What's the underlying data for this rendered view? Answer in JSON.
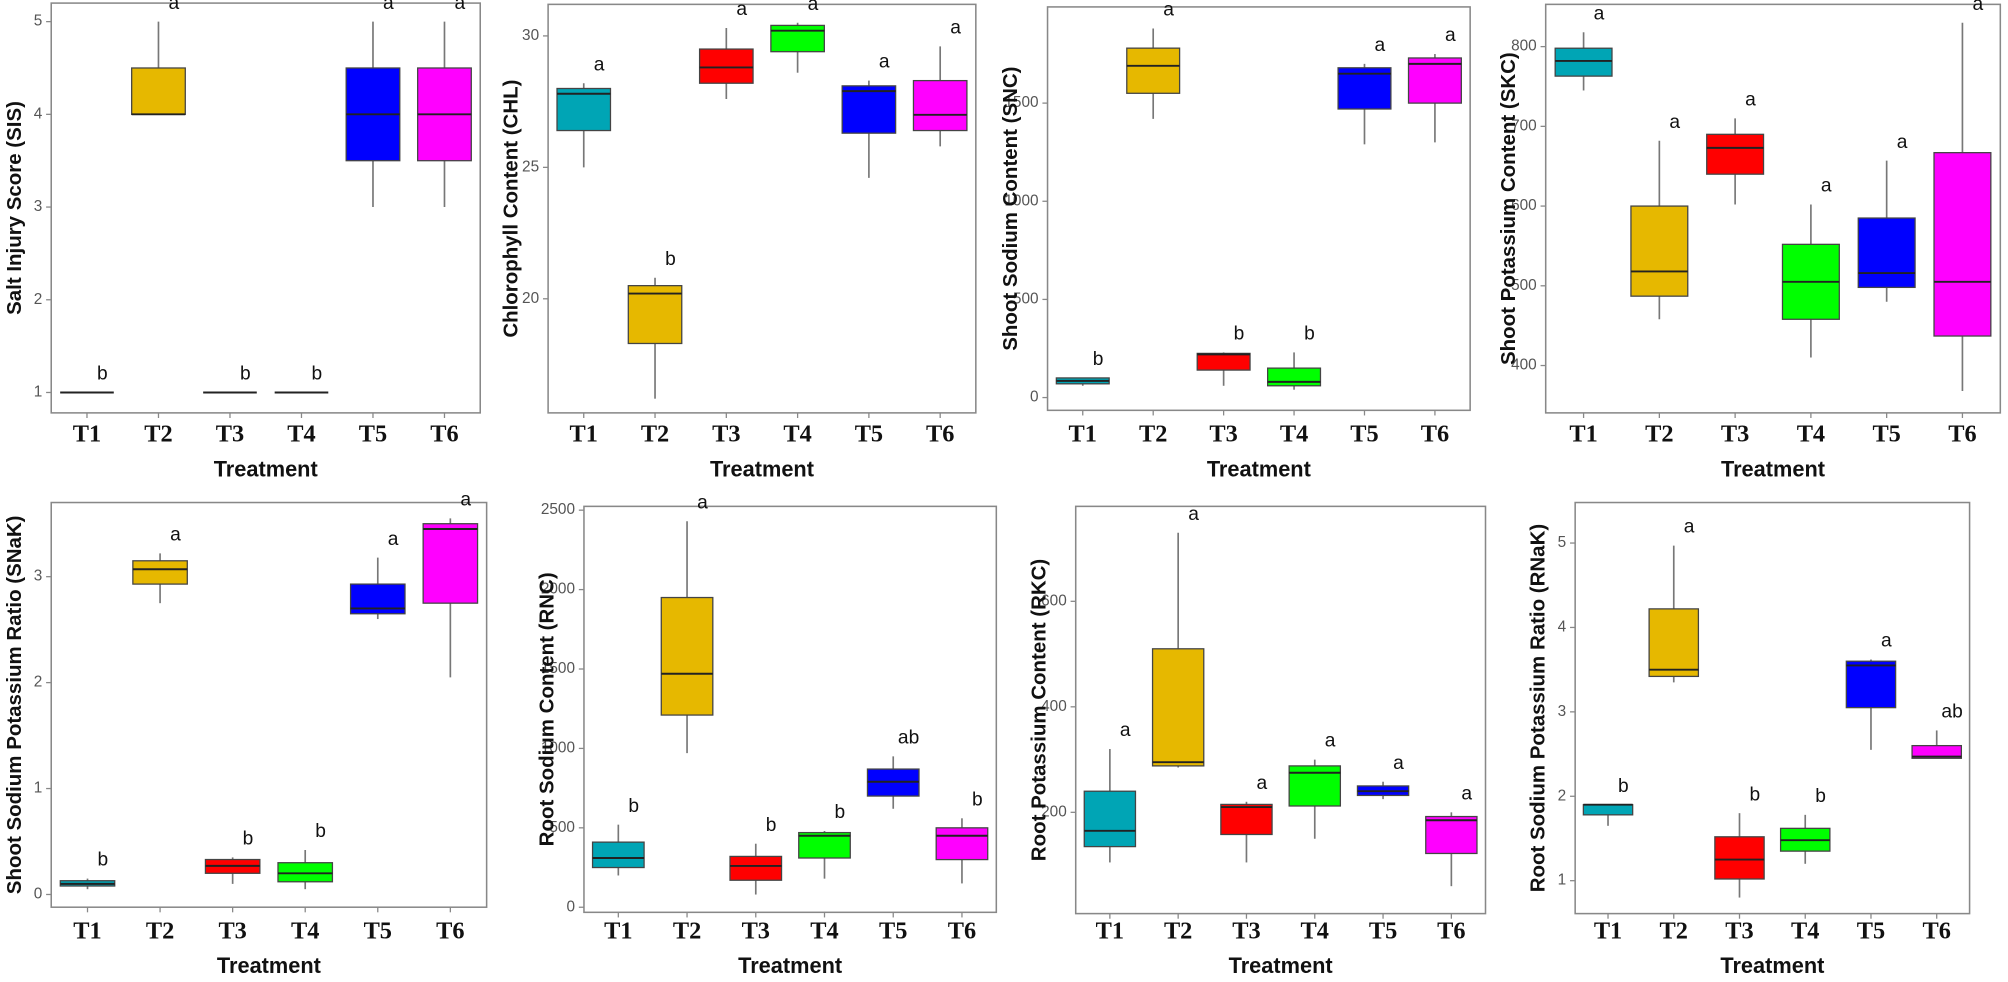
{
  "chart_data": [
    {
      "type": "box",
      "ylabel": "Salt Injury Score (SIS)",
      "xlabel": "Treatment",
      "categories": [
        "T1",
        "T2",
        "T3",
        "T4",
        "T5",
        "T6"
      ],
      "colors": [
        "#00a5b5",
        "#e6b800",
        "#ff0000",
        "#00ff00",
        "#0000ff",
        "#ff00ff"
      ],
      "ylim": [
        0.78,
        5.2
      ],
      "yticks": [
        1,
        2,
        3,
        4,
        5
      ],
      "boxes": [
        {
          "min": 1,
          "q1": 1,
          "median": 1,
          "q3": 1,
          "max": 1
        },
        {
          "min": 4,
          "q1": 4,
          "median": 4,
          "q3": 4.5,
          "max": 5
        },
        {
          "min": 1,
          "q1": 1,
          "median": 1,
          "q3": 1,
          "max": 1
        },
        {
          "min": 1,
          "q1": 1,
          "median": 1,
          "q3": 1,
          "max": 1
        },
        {
          "min": 3,
          "q1": 3.5,
          "median": 4,
          "q3": 4.5,
          "max": 5
        },
        {
          "min": 3,
          "q1": 3.5,
          "median": 4,
          "q3": 4.5,
          "max": 5
        }
      ],
      "letters": [
        "b",
        "a",
        "b",
        "b",
        "a",
        "a"
      ]
    },
    {
      "type": "box",
      "ylabel": "Chlorophyll Content (CHL)",
      "xlabel": "Treatment",
      "categories": [
        "T1",
        "T2",
        "T3",
        "T4",
        "T5",
        "T6"
      ],
      "colors": [
        "#00a5b5",
        "#e6b800",
        "#ff0000",
        "#00ff00",
        "#0000ff",
        "#ff00ff"
      ],
      "ylim": [
        15.66,
        31.2
      ],
      "yticks": [
        20,
        25,
        30
      ],
      "boxes": [
        {
          "min": 25,
          "q1": 26.4,
          "median": 27.8,
          "q3": 28,
          "max": 28.2
        },
        {
          "min": 16.2,
          "q1": 18.3,
          "median": 20.2,
          "q3": 20.5,
          "max": 20.8
        },
        {
          "min": 27.6,
          "q1": 28.2,
          "median": 28.8,
          "q3": 29.5,
          "max": 30.3
        },
        {
          "min": 28.6,
          "q1": 29.4,
          "median": 30.2,
          "q3": 30.4,
          "max": 30.5
        },
        {
          "min": 24.6,
          "q1": 26.3,
          "median": 27.9,
          "q3": 28.1,
          "max": 28.3
        },
        {
          "min": 25.8,
          "q1": 26.4,
          "median": 27,
          "q3": 28.3,
          "max": 29.6
        }
      ],
      "letters": [
        "a",
        "b",
        "a",
        "a",
        "a",
        "a"
      ]
    },
    {
      "type": "box",
      "ylabel": "Shoot Sodium Content (SNC)",
      "xlabel": "Treatment",
      "categories": [
        "T1",
        "T2",
        "T3",
        "T4",
        "T5",
        "T6"
      ],
      "colors": [
        "#00a5b5",
        "#e6b800",
        "#ff0000",
        "#00ff00",
        "#0000ff",
        "#ff00ff"
      ],
      "ylim": [
        -65,
        1990
      ],
      "yticks": [
        0,
        500,
        1000,
        1500
      ],
      "boxes": [
        {
          "min": 60,
          "q1": 70,
          "median": 85,
          "q3": 100,
          "max": 100
        },
        {
          "min": 1420,
          "q1": 1550,
          "median": 1690,
          "q3": 1780,
          "max": 1880
        },
        {
          "min": 60,
          "q1": 140,
          "median": 220,
          "q3": 225,
          "max": 230
        },
        {
          "min": 40,
          "q1": 60,
          "median": 80,
          "q3": 150,
          "max": 230
        },
        {
          "min": 1290,
          "q1": 1470,
          "median": 1650,
          "q3": 1680,
          "max": 1700
        },
        {
          "min": 1300,
          "q1": 1500,
          "median": 1700,
          "q3": 1730,
          "max": 1750
        }
      ],
      "letters": [
        "b",
        "a",
        "b",
        "b",
        "a",
        "a"
      ]
    },
    {
      "type": "box",
      "ylabel": "Shoot Potassium Content (SKC)",
      "xlabel": "Treatment",
      "categories": [
        "T1",
        "T2",
        "T3",
        "T4",
        "T5",
        "T6"
      ],
      "colors": [
        "#00a5b5",
        "#e6b800",
        "#ff0000",
        "#00ff00",
        "#0000ff",
        "#ff00ff"
      ],
      "ylim": [
        340.6,
        853
      ],
      "yticks": [
        400,
        500,
        600,
        700,
        800
      ],
      "boxes": [
        {
          "min": 745,
          "q1": 763,
          "median": 782,
          "q3": 798,
          "max": 818
        },
        {
          "min": 458,
          "q1": 487,
          "median": 518,
          "q3": 600,
          "max": 682
        },
        {
          "min": 602,
          "q1": 640,
          "median": 673,
          "q3": 690,
          "max": 710
        },
        {
          "min": 410,
          "q1": 458,
          "median": 505,
          "q3": 552,
          "max": 602
        },
        {
          "min": 480,
          "q1": 498,
          "median": 516,
          "q3": 585,
          "max": 657
        },
        {
          "min": 368,
          "q1": 437,
          "median": 505,
          "q3": 667,
          "max": 830
        }
      ],
      "letters": [
        "a",
        "a",
        "a",
        "a",
        "a",
        "a"
      ]
    },
    {
      "type": "box",
      "ylabel": "Shoot Sodium Potassium Ratio (SNaK)",
      "xlabel": "Treatment",
      "categories": [
        "T1",
        "T2",
        "T3",
        "T4",
        "T5",
        "T6"
      ],
      "colors": [
        "#00a5b5",
        "#e6b800",
        "#ff0000",
        "#00ff00",
        "#0000ff",
        "#ff00ff"
      ],
      "ylim": [
        -0.12,
        3.7
      ],
      "yticks": [
        0,
        1,
        2,
        3
      ],
      "boxes": [
        {
          "min": 0.05,
          "q1": 0.08,
          "median": 0.1,
          "q3": 0.13,
          "max": 0.15
        },
        {
          "min": 2.75,
          "q1": 2.93,
          "median": 3.07,
          "q3": 3.15,
          "max": 3.22
        },
        {
          "min": 0.1,
          "q1": 0.2,
          "median": 0.27,
          "q3": 0.33,
          "max": 0.35
        },
        {
          "min": 0.05,
          "q1": 0.12,
          "median": 0.2,
          "q3": 0.3,
          "max": 0.42
        },
        {
          "min": 2.6,
          "q1": 2.65,
          "median": 2.7,
          "q3": 2.93,
          "max": 3.18
        },
        {
          "min": 2.05,
          "q1": 2.75,
          "median": 3.45,
          "q3": 3.5,
          "max": 3.55
        }
      ],
      "letters": [
        "b",
        "a",
        "b",
        "b",
        "a",
        "a"
      ]
    },
    {
      "type": "box",
      "ylabel": "Root Sodium Content (RNC)",
      "xlabel": "Treatment",
      "categories": [
        "T1",
        "T2",
        "T3",
        "T4",
        "T5",
        "T6"
      ],
      "colors": [
        "#00a5b5",
        "#e6b800",
        "#ff0000",
        "#00ff00",
        "#0000ff",
        "#ff00ff"
      ],
      "ylim": [
        -32,
        2524
      ],
      "yticks": [
        0,
        500,
        1000,
        1500,
        2000,
        2500
      ],
      "boxes": [
        {
          "min": 200,
          "q1": 250,
          "median": 310,
          "q3": 410,
          "max": 520
        },
        {
          "min": 970,
          "q1": 1210,
          "median": 1470,
          "q3": 1950,
          "max": 2430
        },
        {
          "min": 80,
          "q1": 170,
          "median": 260,
          "q3": 320,
          "max": 400
        },
        {
          "min": 180,
          "q1": 310,
          "median": 450,
          "q3": 470,
          "max": 480
        },
        {
          "min": 620,
          "q1": 700,
          "median": 790,
          "q3": 870,
          "max": 950
        },
        {
          "min": 150,
          "q1": 300,
          "median": 450,
          "q3": 500,
          "max": 560
        }
      ],
      "letters": [
        "b",
        "a",
        "b",
        "b",
        "ab",
        "b"
      ]
    },
    {
      "type": "box",
      "ylabel": "Root Potassium Content (RKC)",
      "xlabel": "Treatment",
      "categories": [
        "T1",
        "T2",
        "T3",
        "T4",
        "T5",
        "T6"
      ],
      "colors": [
        "#00a5b5",
        "#e6b800",
        "#ff0000",
        "#00ff00",
        "#0000ff",
        "#ff00ff"
      ],
      "ylim": [
        8,
        780
      ],
      "yticks": [
        200,
        400,
        600
      ],
      "boxes": [
        {
          "min": 105,
          "q1": 135,
          "median": 165,
          "q3": 240,
          "max": 320
        },
        {
          "min": 285,
          "q1": 288,
          "median": 295,
          "q3": 510,
          "max": 730
        },
        {
          "min": 105,
          "q1": 158,
          "median": 210,
          "q3": 215,
          "max": 220
        },
        {
          "min": 150,
          "q1": 212,
          "median": 275,
          "q3": 288,
          "max": 300
        },
        {
          "min": 225,
          "q1": 232,
          "median": 240,
          "q3": 250,
          "max": 258
        },
        {
          "min": 60,
          "q1": 122,
          "median": 185,
          "q3": 192,
          "max": 200
        }
      ],
      "letters": [
        "a",
        "a",
        "a",
        "a",
        "a",
        "a"
      ]
    },
    {
      "type": "box",
      "ylabel": "Root Sodium Potassium Ratio (RNaK)",
      "xlabel": "Treatment",
      "categories": [
        "T1",
        "T2",
        "T3",
        "T4",
        "T5",
        "T6"
      ],
      "colors": [
        "#00a5b5",
        "#e6b800",
        "#ff0000",
        "#00ff00",
        "#0000ff",
        "#ff00ff"
      ],
      "ylim": [
        0.61,
        5.48
      ],
      "yticks": [
        1,
        2,
        3,
        4,
        5
      ],
      "boxes": [
        {
          "min": 1.65,
          "q1": 1.78,
          "median": 1.9,
          "q3": 1.9,
          "max": 1.9
        },
        {
          "min": 3.35,
          "q1": 3.42,
          "median": 3.5,
          "q3": 4.22,
          "max": 4.97
        },
        {
          "min": 0.8,
          "q1": 1.02,
          "median": 1.25,
          "q3": 1.52,
          "max": 1.8
        },
        {
          "min": 1.2,
          "q1": 1.35,
          "median": 1.48,
          "q3": 1.62,
          "max": 1.78
        },
        {
          "min": 2.55,
          "q1": 3.05,
          "median": 3.55,
          "q3": 3.6,
          "max": 3.62
        },
        {
          "min": 2.45,
          "q1": 2.45,
          "median": 2.47,
          "q3": 2.6,
          "max": 2.78
        }
      ],
      "letters": [
        "b",
        "a",
        "b",
        "b",
        "a",
        "ab"
      ]
    }
  ]
}
